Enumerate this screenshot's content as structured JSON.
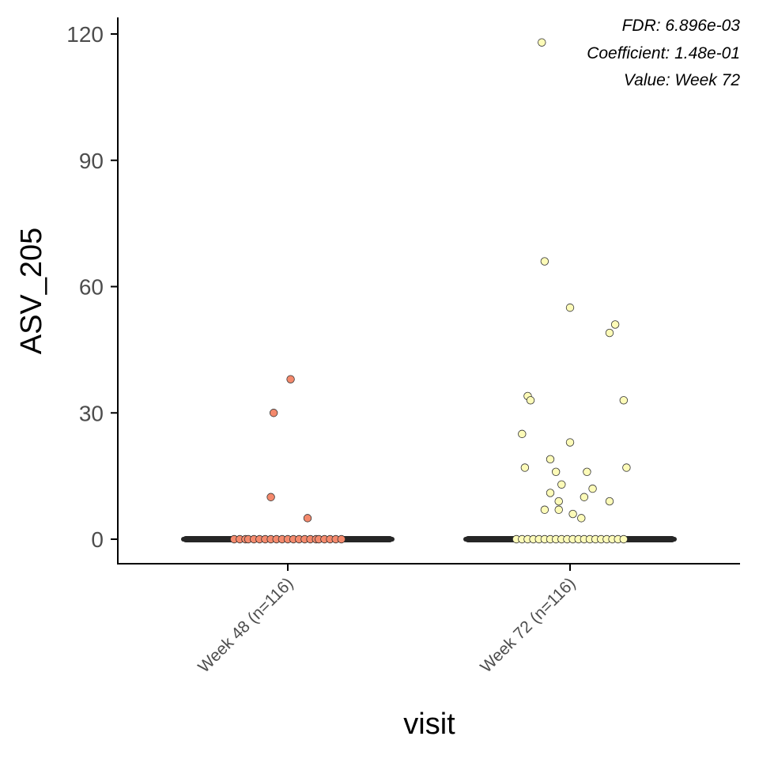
{
  "chart_data": {
    "type": "scatter",
    "subtype": "boxplot-with-jitter",
    "xlabel": "visit",
    "ylabel": "ASV_205",
    "ylim": [
      -4,
      125
    ],
    "yticks": [
      0,
      30,
      60,
      90,
      120
    ],
    "grid": false,
    "legend": "none",
    "categories": [
      "Week 48 (n=116)",
      "Week 72 (n=116)"
    ],
    "annotations": [
      "FDR: 6.896e-03",
      "Coefficient: 1.48e-01",
      "Value: Week 72"
    ],
    "colors": {
      "axis": "#000000",
      "box": "#262626",
      "point_stroke": "#333333"
    },
    "series": [
      {
        "category": "Week 48 (n=116)",
        "color": "#f4896c",
        "box": {
          "min": 0,
          "q1": 0,
          "median": 0,
          "q3": 0,
          "max": 0
        },
        "nonzero_points": [
          {
            "jitter": 0.01,
            "y": 38
          },
          {
            "jitter": -0.05,
            "y": 30
          },
          {
            "jitter": -0.06,
            "y": 10
          },
          {
            "jitter": 0.07,
            "y": 5
          }
        ],
        "zero_points": [
          -0.19,
          -0.17,
          -0.15,
          -0.14,
          -0.12,
          -0.1,
          -0.08,
          -0.06,
          -0.04,
          -0.02,
          0.0,
          0.02,
          0.04,
          0.06,
          0.08,
          0.1,
          0.11,
          0.13,
          0.15,
          0.17,
          0.19
        ]
      },
      {
        "category": "Week 72 (n=116)",
        "color": "#fdfbb8",
        "box": {
          "min": 0,
          "q1": 0,
          "median": 0,
          "q3": 0,
          "max": 0
        },
        "nonzero_points": [
          {
            "jitter": -0.1,
            "y": 118
          },
          {
            "jitter": -0.09,
            "y": 66
          },
          {
            "jitter": 0.0,
            "y": 55
          },
          {
            "jitter": 0.16,
            "y": 51
          },
          {
            "jitter": 0.14,
            "y": 49
          },
          {
            "jitter": -0.15,
            "y": 34
          },
          {
            "jitter": -0.14,
            "y": 33
          },
          {
            "jitter": 0.19,
            "y": 33
          },
          {
            "jitter": -0.17,
            "y": 25
          },
          {
            "jitter": 0.0,
            "y": 23
          },
          {
            "jitter": -0.07,
            "y": 19
          },
          {
            "jitter": -0.16,
            "y": 17
          },
          {
            "jitter": 0.2,
            "y": 17
          },
          {
            "jitter": -0.05,
            "y": 16
          },
          {
            "jitter": 0.06,
            "y": 16
          },
          {
            "jitter": -0.03,
            "y": 13
          },
          {
            "jitter": 0.08,
            "y": 12
          },
          {
            "jitter": -0.07,
            "y": 11
          },
          {
            "jitter": 0.05,
            "y": 10
          },
          {
            "jitter": -0.04,
            "y": 9
          },
          {
            "jitter": 0.14,
            "y": 9
          },
          {
            "jitter": -0.09,
            "y": 7
          },
          {
            "jitter": -0.04,
            "y": 7
          },
          {
            "jitter": 0.01,
            "y": 6
          },
          {
            "jitter": 0.04,
            "y": 5
          }
        ],
        "zero_points": [
          -0.19,
          -0.17,
          -0.15,
          -0.13,
          -0.11,
          -0.09,
          -0.07,
          -0.05,
          -0.03,
          -0.01,
          0.01,
          0.03,
          0.05,
          0.07,
          0.09,
          0.11,
          0.13,
          0.15,
          0.17,
          0.19
        ]
      }
    ]
  }
}
